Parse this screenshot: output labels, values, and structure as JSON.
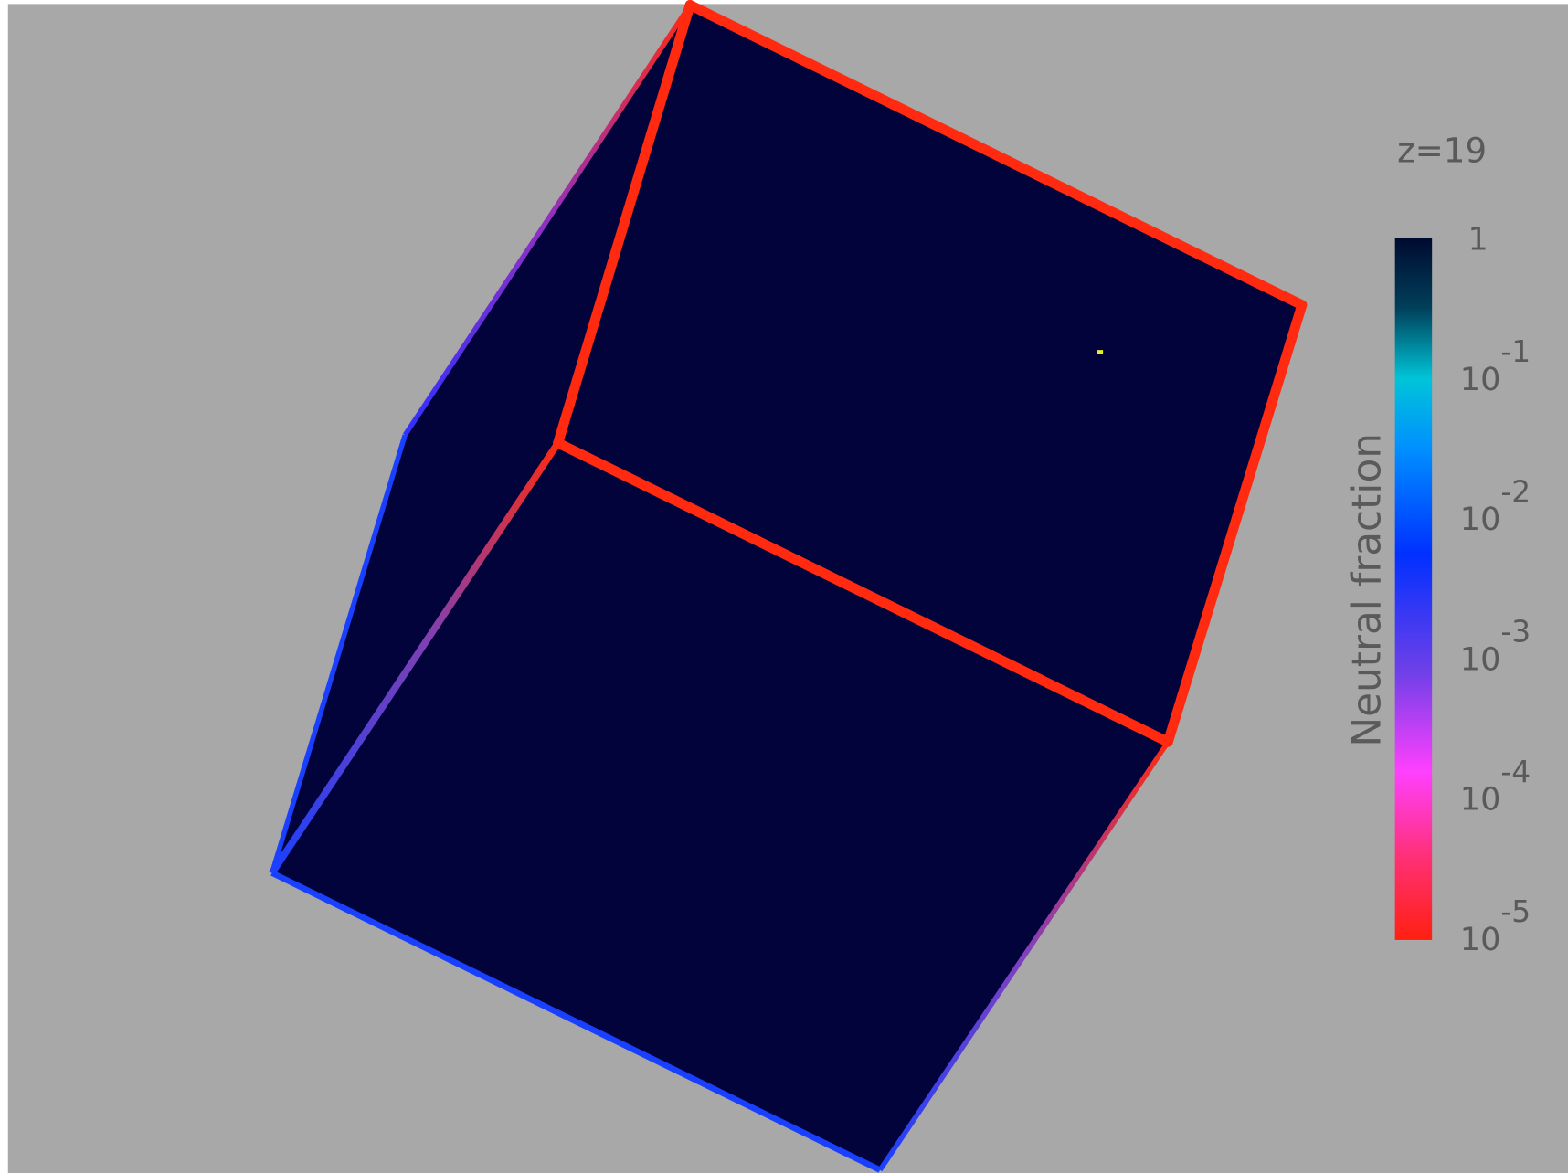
{
  "label": "z=19",
  "colorbar": {
    "title": "Neutral fraction",
    "ticks": [
      {
        "base": "1"
      },
      {
        "base": "10",
        "exponent": "-1"
      },
      {
        "base": "10",
        "exponent": "-2"
      },
      {
        "base": "10",
        "exponent": "-3"
      },
      {
        "base": "10",
        "exponent": "-4"
      },
      {
        "base": "10",
        "exponent": "-5"
      }
    ]
  }
}
